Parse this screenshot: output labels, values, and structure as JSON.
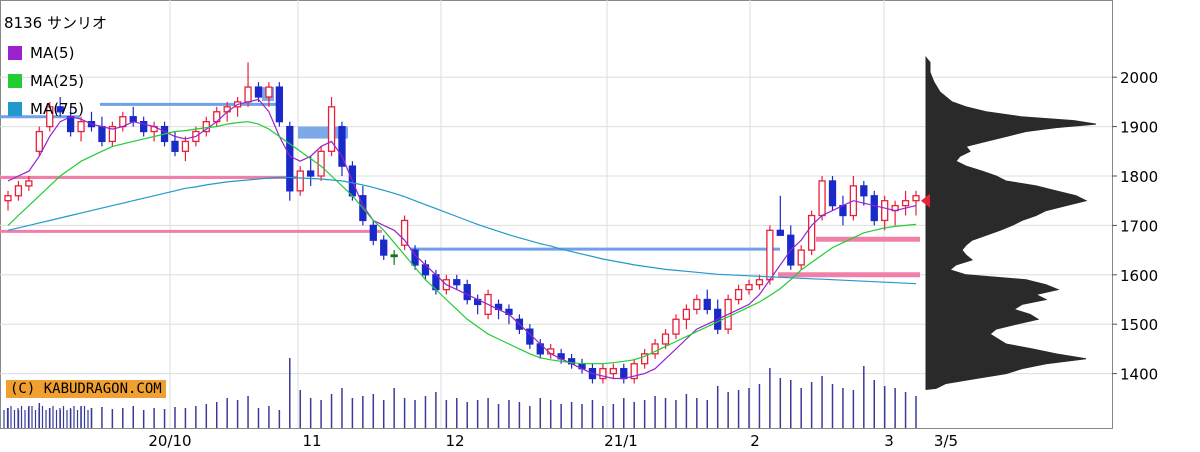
{
  "title": "8136 サンリオ",
  "credit": "(C) KABUDRAGON.COM",
  "legend": [
    {
      "label": "MA(5)",
      "color": "#9922cc"
    },
    {
      "label": "MA(25)",
      "color": "#22cc33"
    },
    {
      "label": "MA(75)",
      "color": "#2299cc"
    }
  ],
  "colors": {
    "up": "#e8203a",
    "down": "#1a2ac8",
    "flat": "#117711",
    "volume": "#3a3a9a",
    "profile": "#2a2a2a",
    "support_blue": "#6fa0e8",
    "support_pink": "#f080a8",
    "marker": "#e8203a"
  },
  "chart_data": {
    "type": "candlestick",
    "title": "8136 サンリオ",
    "y_ticks": [
      1400,
      1500,
      1600,
      1700,
      1800,
      1900,
      2000
    ],
    "ylim": [
      1290,
      2040
    ],
    "x_labels": [
      "20/10",
      "11",
      "12",
      "21/1",
      "2",
      "3",
      "3/5"
    ],
    "series": [
      {
        "name": "MA(5)",
        "values": [
          1790,
          1800,
          1810,
          1840,
          1880,
          1910,
          1920,
          1915,
          1905,
          1900,
          1895,
          1900,
          1910,
          1905,
          1900,
          1890,
          1880,
          1875,
          1880,
          1895,
          1910,
          1930,
          1945,
          1950,
          1955,
          1930,
          1880,
          1840,
          1830,
          1840,
          1860,
          1870,
          1840,
          1790,
          1740,
          1710,
          1700,
          1690,
          1670,
          1640,
          1620,
          1600,
          1580,
          1570,
          1560,
          1550,
          1540,
          1530,
          1520,
          1500,
          1480,
          1460,
          1440,
          1430,
          1420,
          1410,
          1400,
          1395,
          1390,
          1390,
          1395,
          1400,
          1410,
          1430,
          1450,
          1470,
          1490,
          1500,
          1510,
          1520,
          1530,
          1540,
          1560,
          1590,
          1620,
          1650,
          1670,
          1700,
          1720,
          1730,
          1740,
          1750,
          1745,
          1740,
          1735,
          1730,
          1735,
          1740
        ]
      },
      {
        "name": "MA(25)",
        "values": [
          1700,
          1720,
          1740,
          1760,
          1780,
          1800,
          1815,
          1830,
          1840,
          1850,
          1860,
          1865,
          1870,
          1875,
          1880,
          1885,
          1890,
          1892,
          1895,
          1898,
          1900,
          1905,
          1908,
          1910,
          1905,
          1895,
          1880,
          1865,
          1850,
          1835,
          1820,
          1800,
          1780,
          1760,
          1735,
          1710,
          1690,
          1665,
          1640,
          1615,
          1590,
          1570,
          1550,
          1530,
          1510,
          1495,
          1480,
          1470,
          1460,
          1450,
          1440,
          1432,
          1428,
          1425,
          1422,
          1420,
          1420,
          1420,
          1422,
          1425,
          1428,
          1435,
          1445,
          1455,
          1465,
          1475,
          1485,
          1495,
          1505,
          1515,
          1525,
          1535,
          1545,
          1558,
          1572,
          1590,
          1610,
          1625,
          1640,
          1655,
          1665,
          1675,
          1685,
          1690,
          1695,
          1698,
          1700,
          1702
        ]
      },
      {
        "name": "MA(75)",
        "values": [
          1690,
          1695,
          1700,
          1705,
          1710,
          1715,
          1720,
          1725,
          1730,
          1735,
          1740,
          1745,
          1750,
          1755,
          1760,
          1765,
          1770,
          1775,
          1778,
          1782,
          1785,
          1788,
          1790,
          1792,
          1794,
          1796,
          1797,
          1797,
          1796,
          1795,
          1794,
          1792,
          1790,
          1786,
          1782,
          1777,
          1771,
          1765,
          1758,
          1750,
          1742,
          1734,
          1726,
          1718,
          1710,
          1702,
          1695,
          1688,
          1681,
          1675,
          1669,
          1663,
          1658,
          1652,
          1647,
          1642,
          1637,
          1632,
          1628,
          1624,
          1620,
          1617,
          1614,
          1611,
          1609,
          1607,
          1605,
          1603,
          1601,
          1600,
          1599,
          1598,
          1597,
          1596,
          1595,
          1594,
          1593,
          1592,
          1591,
          1590,
          1589,
          1588,
          1587,
          1586,
          1585,
          1584,
          1583,
          1582
        ]
      }
    ],
    "candles": [
      [
        1750,
        1770,
        1730,
        1760
      ],
      [
        1760,
        1790,
        1750,
        1780
      ],
      [
        1780,
        1800,
        1770,
        1790
      ],
      [
        1850,
        1900,
        1840,
        1890
      ],
      [
        1900,
        1950,
        1890,
        1940
      ],
      [
        1940,
        1960,
        1920,
        1930
      ],
      [
        1920,
        1940,
        1880,
        1890
      ],
      [
        1890,
        1920,
        1870,
        1910
      ],
      [
        1910,
        1930,
        1890,
        1900
      ],
      [
        1900,
        1920,
        1860,
        1870
      ],
      [
        1870,
        1910,
        1860,
        1900
      ],
      [
        1900,
        1930,
        1890,
        1920
      ],
      [
        1920,
        1940,
        1900,
        1910
      ],
      [
        1910,
        1920,
        1880,
        1890
      ],
      [
        1890,
        1910,
        1870,
        1900
      ],
      [
        1900,
        1910,
        1860,
        1870
      ],
      [
        1870,
        1890,
        1840,
        1850
      ],
      [
        1850,
        1880,
        1830,
        1870
      ],
      [
        1870,
        1900,
        1860,
        1890
      ],
      [
        1890,
        1920,
        1880,
        1910
      ],
      [
        1910,
        1940,
        1900,
        1930
      ],
      [
        1930,
        1950,
        1910,
        1940
      ],
      [
        1940,
        1960,
        1920,
        1950
      ],
      [
        1950,
        2030,
        1940,
        1980
      ],
      [
        1980,
        1990,
        1950,
        1960
      ],
      [
        1960,
        1990,
        1940,
        1980
      ],
      [
        1980,
        1990,
        1900,
        1910
      ],
      [
        1900,
        1910,
        1750,
        1770
      ],
      [
        1770,
        1820,
        1760,
        1810
      ],
      [
        1810,
        1840,
        1780,
        1800
      ],
      [
        1800,
        1860,
        1790,
        1850
      ],
      [
        1850,
        1960,
        1840,
        1940
      ],
      [
        1900,
        1910,
        1800,
        1820
      ],
      [
        1820,
        1830,
        1750,
        1760
      ],
      [
        1760,
        1780,
        1700,
        1710
      ],
      [
        1700,
        1710,
        1660,
        1670
      ],
      [
        1670,
        1680,
        1630,
        1640
      ],
      [
        1640,
        1650,
        1620,
        1640
      ],
      [
        1660,
        1720,
        1650,
        1710
      ],
      [
        1650,
        1660,
        1610,
        1620
      ],
      [
        1620,
        1630,
        1590,
        1600
      ],
      [
        1600,
        1610,
        1560,
        1570
      ],
      [
        1570,
        1600,
        1560,
        1590
      ],
      [
        1590,
        1600,
        1570,
        1580
      ],
      [
        1580,
        1590,
        1540,
        1550
      ],
      [
        1550,
        1560,
        1520,
        1540
      ],
      [
        1520,
        1570,
        1510,
        1560
      ],
      [
        1540,
        1550,
        1510,
        1530
      ],
      [
        1530,
        1540,
        1500,
        1520
      ],
      [
        1510,
        1520,
        1480,
        1490
      ],
      [
        1490,
        1500,
        1450,
        1460
      ],
      [
        1460,
        1470,
        1430,
        1440
      ],
      [
        1440,
        1460,
        1430,
        1450
      ],
      [
        1440,
        1450,
        1420,
        1430
      ],
      [
        1430,
        1440,
        1410,
        1420
      ],
      [
        1420,
        1430,
        1400,
        1410
      ],
      [
        1410,
        1420,
        1380,
        1390
      ],
      [
        1390,
        1420,
        1380,
        1410
      ],
      [
        1400,
        1420,
        1390,
        1410
      ],
      [
        1410,
        1420,
        1380,
        1390
      ],
      [
        1390,
        1430,
        1380,
        1420
      ],
      [
        1420,
        1450,
        1410,
        1440
      ],
      [
        1440,
        1470,
        1430,
        1460
      ],
      [
        1460,
        1490,
        1450,
        1480
      ],
      [
        1480,
        1520,
        1470,
        1510
      ],
      [
        1510,
        1540,
        1490,
        1530
      ],
      [
        1530,
        1560,
        1520,
        1550
      ],
      [
        1550,
        1570,
        1520,
        1530
      ],
      [
        1530,
        1550,
        1480,
        1490
      ],
      [
        1490,
        1560,
        1480,
        1550
      ],
      [
        1550,
        1580,
        1540,
        1570
      ],
      [
        1570,
        1590,
        1560,
        1580
      ],
      [
        1580,
        1600,
        1570,
        1590
      ],
      [
        1590,
        1700,
        1580,
        1690
      ],
      [
        1690,
        1760,
        1680,
        1680
      ],
      [
        1680,
        1700,
        1610,
        1620
      ],
      [
        1620,
        1660,
        1610,
        1650
      ],
      [
        1650,
        1730,
        1640,
        1720
      ],
      [
        1720,
        1800,
        1710,
        1790
      ],
      [
        1790,
        1800,
        1730,
        1740
      ],
      [
        1740,
        1760,
        1700,
        1720
      ],
      [
        1720,
        1800,
        1710,
        1780
      ],
      [
        1780,
        1790,
        1740,
        1760
      ],
      [
        1760,
        1770,
        1700,
        1710
      ],
      [
        1710,
        1760,
        1690,
        1750
      ],
      [
        1730,
        1750,
        1700,
        1740
      ],
      [
        1740,
        1770,
        1720,
        1750
      ],
      [
        1750,
        1770,
        1720,
        1760
      ]
    ],
    "volumes": [
      20,
      18,
      22,
      25,
      20,
      18,
      19,
      22,
      20,
      21,
      19,
      20,
      22,
      18,
      20,
      19,
      21,
      20,
      22,
      24,
      26,
      30,
      28,
      32,
      20,
      22,
      18,
      70,
      38,
      30,
      28,
      34,
      40,
      30,
      32,
      34,
      28,
      40,
      30,
      28,
      32,
      36,
      28,
      30,
      26,
      28,
      30,
      24,
      28,
      26,
      22,
      30,
      28,
      24,
      26,
      24,
      28,
      22,
      24,
      30,
      26,
      28,
      32,
      30,
      28,
      34,
      30,
      28,
      42,
      36,
      38,
      40,
      44,
      60,
      50,
      48,
      40,
      46,
      52,
      44,
      40,
      38,
      62,
      48,
      42,
      40,
      36,
      32
    ],
    "support_lines": [
      {
        "level": 1945,
        "color": "blue"
      },
      {
        "level": 1920,
        "color": "blue"
      },
      {
        "level": 1797,
        "color": "pink"
      },
      {
        "level": 1688,
        "color": "pink"
      },
      {
        "level": 1652,
        "color": "blue"
      },
      {
        "level": 1672,
        "color": "pink"
      },
      {
        "level": 1600,
        "color": "pink"
      }
    ],
    "current_price": 1750
  }
}
